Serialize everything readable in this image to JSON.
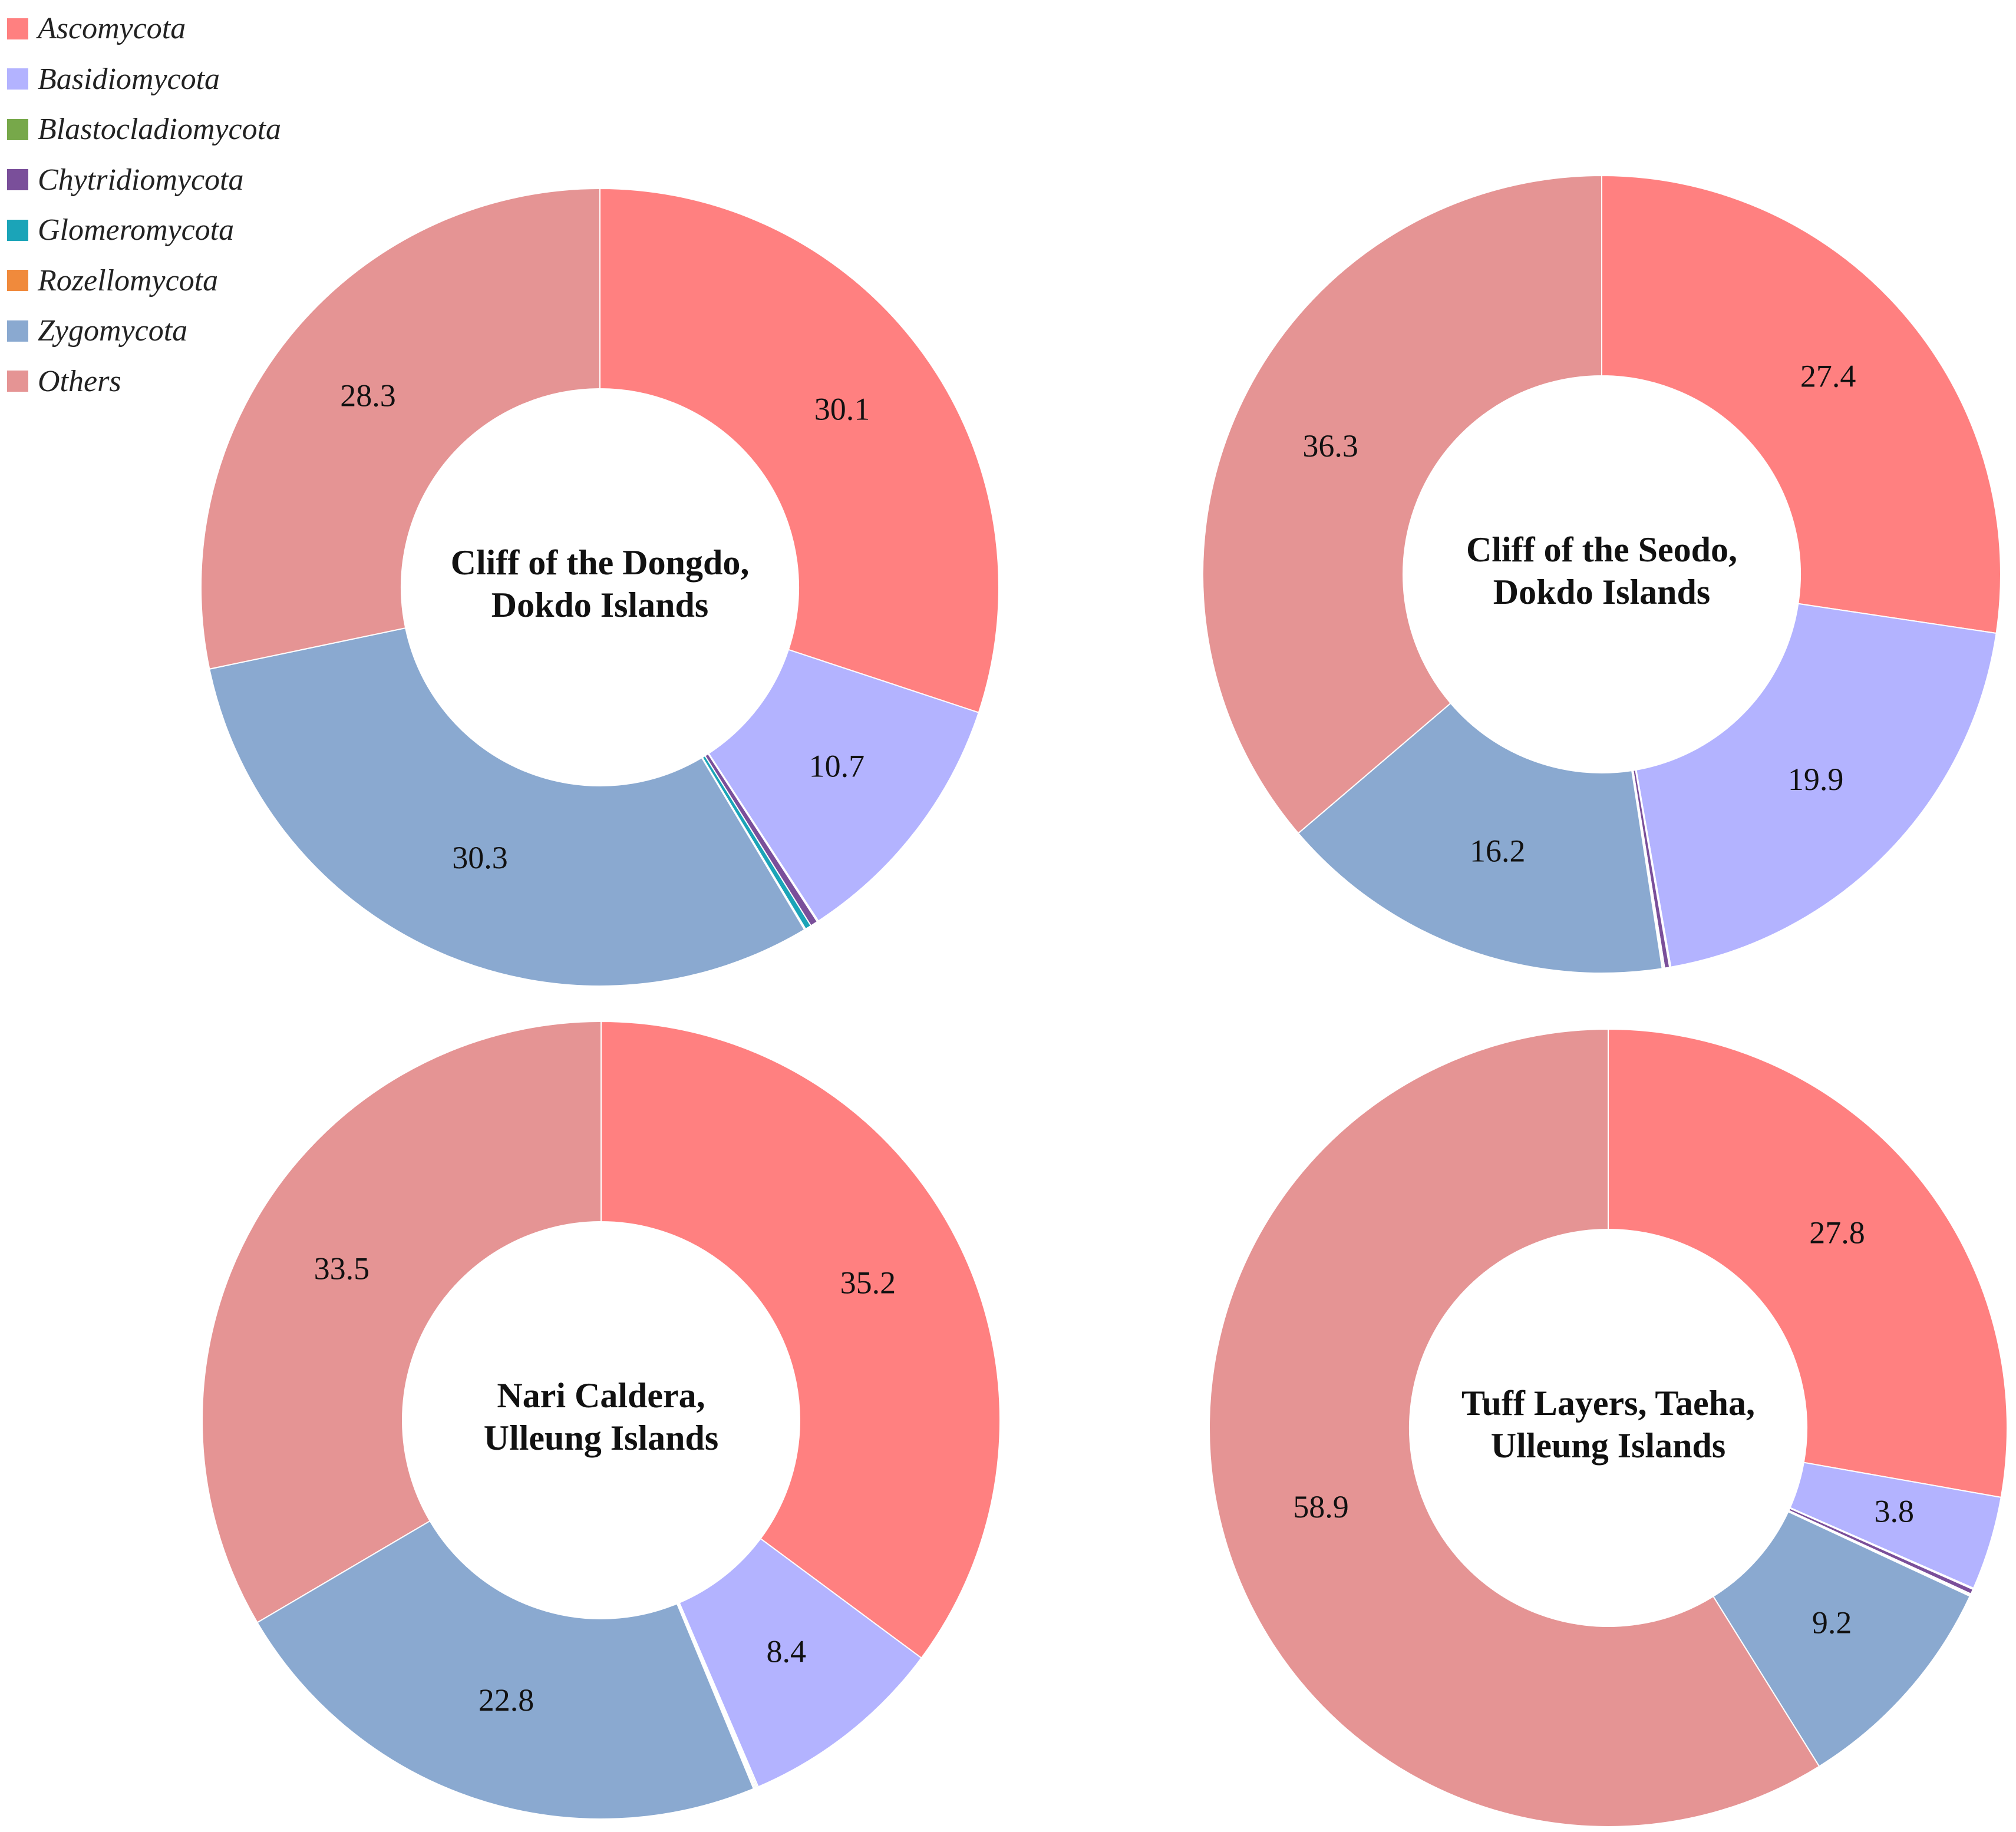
{
  "legend": [
    {
      "name": "Ascomycota",
      "color": "#ff8080"
    },
    {
      "name": "Basidiomycota",
      "color": "#b3b3ff"
    },
    {
      "name": "Blastocladiomycota",
      "color": "#77a84a"
    },
    {
      "name": "Chytridiomycota",
      "color": "#7a4f9a"
    },
    {
      "name": "Glomeromycota",
      "color": "#1ba4b8"
    },
    {
      "name": "Rozellomycota",
      "color": "#f08a3c"
    },
    {
      "name": "Zygomycota",
      "color": "#8aa9d0"
    },
    {
      "name": "Others",
      "color": "#e59494"
    }
  ],
  "chart_data": [
    {
      "type": "pie",
      "donut": true,
      "title_lines": [
        "Cliff of the Dongdo,",
        "Dokdo Islands"
      ],
      "categories": [
        "Ascomycota",
        "Basidiomycota",
        "Blastocladiomycota",
        "Chytridiomycota",
        "Glomeromycota",
        "Rozellomycota",
        "Zygomycota",
        "Others"
      ],
      "values": [
        30.1,
        10.7,
        0.05,
        0.3,
        0.25,
        0.05,
        30.3,
        28.3
      ],
      "labels": [
        "30.1",
        "10.7",
        "",
        "",
        "",
        "",
        "30.3",
        "28.3"
      ]
    },
    {
      "type": "pie",
      "donut": true,
      "title_lines": [
        "Cliff of the Seodo,",
        "Dokdo Islands"
      ],
      "categories": [
        "Ascomycota",
        "Basidiomycota",
        "Blastocladiomycota",
        "Chytridiomycota",
        "Glomeromycota",
        "Rozellomycota",
        "Zygomycota",
        "Others"
      ],
      "values": [
        27.4,
        19.9,
        0.05,
        0.2,
        0.05,
        0.05,
        16.2,
        36.3
      ],
      "labels": [
        "27.4",
        "19.9",
        "",
        "",
        "",
        "",
        "16.2",
        "36.3"
      ]
    },
    {
      "type": "pie",
      "donut": true,
      "title_lines": [
        "Nari Caldera,",
        "Ulleung Islands"
      ],
      "categories": [
        "Ascomycota",
        "Basidiomycota",
        "Blastocladiomycota",
        "Chytridiomycota",
        "Glomeromycota",
        "Rozellomycota",
        "Zygomycota",
        "Others"
      ],
      "values": [
        35.2,
        8.4,
        0.05,
        0.05,
        0.05,
        0.05,
        22.8,
        33.5
      ],
      "labels": [
        "35.2",
        "8.4",
        "",
        "",
        "",
        "",
        "22.8",
        "33.5"
      ]
    },
    {
      "type": "pie",
      "donut": true,
      "title_lines": [
        "Tuff Layers, Taeha,",
        "Ulleung Islands"
      ],
      "categories": [
        "Ascomycota",
        "Basidiomycota",
        "Blastocladiomycota",
        "Chytridiomycota",
        "Glomeromycota",
        "Rozellomycota",
        "Zygomycota",
        "Others"
      ],
      "values": [
        27.8,
        3.8,
        0.05,
        0.2,
        0.05,
        0.05,
        9.2,
        58.9
      ],
      "labels": [
        "27.8",
        "3.8",
        "",
        "",
        "",
        "",
        "9.2",
        "58.9"
      ]
    }
  ]
}
